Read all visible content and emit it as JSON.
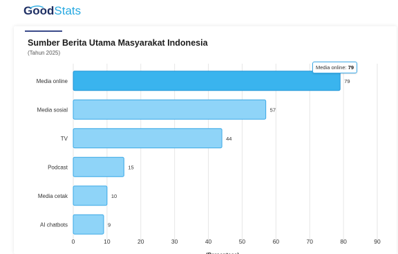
{
  "brand": {
    "part1": "Good",
    "part2": "Stats"
  },
  "colors": {
    "bar": "#8fd4f8",
    "bar_stroke": "#3aa8e6",
    "bar_highlight": "#3ab4ee",
    "bar_highlight_stroke": "#1e93d6",
    "grid": "#e6e6e6",
    "text": "#333333"
  },
  "tooltip": {
    "label": "Media online:",
    "value": "79"
  },
  "chart_data": {
    "type": "bar",
    "orientation": "horizontal",
    "title": "Sumber Berita Utama Masyarakat Indonesia",
    "subtitle": "(Tahun 2025)",
    "xlabel": "(Persentase)",
    "categories": [
      "Media online",
      "Media sosial",
      "TV",
      "Podcast",
      "Media cetak",
      "AI chatbots"
    ],
    "values": [
      79,
      57,
      44,
      15,
      10,
      9
    ],
    "xlim": [
      0,
      90
    ],
    "xticks": [
      0,
      10,
      20,
      30,
      40,
      50,
      60,
      70,
      80,
      90
    ],
    "highlighted": "Media online",
    "grid": true,
    "legend": "none"
  }
}
